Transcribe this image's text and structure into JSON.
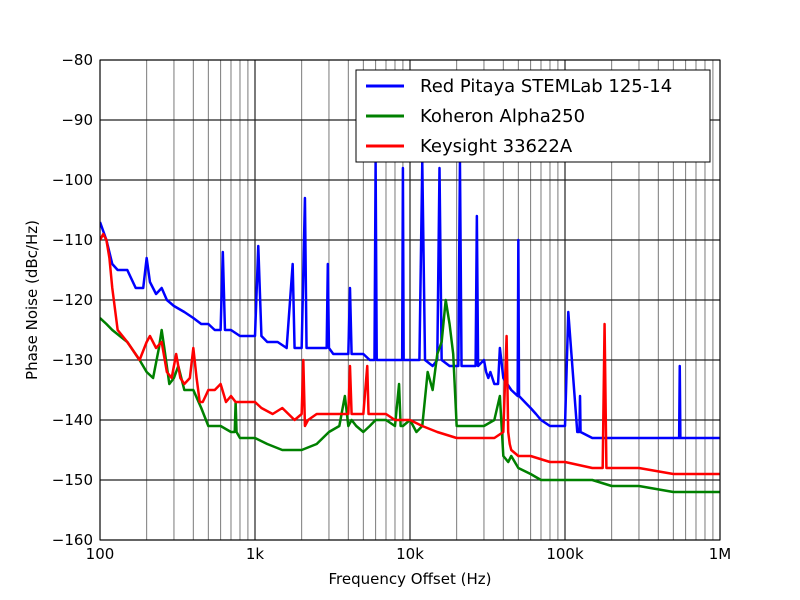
{
  "chart_data": {
    "type": "line",
    "xlabel": "Frequency Offset (Hz)",
    "ylabel": "Phase Noise (dBc/Hz)",
    "xscale": "log",
    "xlim": [
      100,
      1000000
    ],
    "ylim": [
      -160,
      -80
    ],
    "grid": "on (major and minor)",
    "legend_position": "top-right",
    "x_ticks": [
      {
        "value": 100,
        "label": "100"
      },
      {
        "value": 1000,
        "label": "1k"
      },
      {
        "value": 10000,
        "label": "10k"
      },
      {
        "value": 100000,
        "label": "100k"
      },
      {
        "value": 1000000,
        "label": "1M"
      }
    ],
    "y_ticks": [
      {
        "value": -80,
        "label": "−80"
      },
      {
        "value": -90,
        "label": "−90"
      },
      {
        "value": -100,
        "label": "−100"
      },
      {
        "value": -110,
        "label": "−110"
      },
      {
        "value": -120,
        "label": "−120"
      },
      {
        "value": -130,
        "label": "−130"
      },
      {
        "value": -140,
        "label": "−140"
      },
      {
        "value": -150,
        "label": "−150"
      },
      {
        "value": -160,
        "label": "−160"
      }
    ],
    "series": [
      {
        "name": "Red Pitaya STEMLab 125-14",
        "color": "#0000ff",
        "x": [
          100,
          110,
          120,
          130,
          150,
          170,
          190,
          200,
          210,
          230,
          250,
          270,
          300,
          350,
          400,
          450,
          500,
          550,
          600,
          620,
          640,
          700,
          800,
          900,
          1000,
          1050,
          1100,
          1200,
          1400,
          1600,
          1750,
          1800,
          2000,
          2100,
          2150,
          2200,
          2500,
          2900,
          2950,
          3000,
          3200,
          3500,
          3800,
          4000,
          4100,
          4200,
          4500,
          5000,
          5500,
          5900,
          6000,
          6100,
          6500,
          7000,
          8000,
          8900,
          9000,
          9100,
          9500,
          10000,
          11500,
          12000,
          12500,
          14000,
          15000,
          15500,
          16000,
          18000,
          20500,
          21000,
          21500,
          23000,
          26500,
          27000,
          27500,
          30000,
          31000,
          32000,
          33000,
          35000,
          37000,
          38000,
          40000,
          45000,
          49500,
          50000,
          50500,
          55000,
          60000,
          65000,
          70000,
          80000,
          90000,
          100000,
          105000,
          120000,
          124000,
          125000,
          126000,
          150000,
          200000,
          250000,
          300000,
          400000,
          500000,
          545000,
          550000,
          555000,
          600000,
          700000,
          800000,
          1000000
        ],
        "y": [
          -107,
          -110,
          -114,
          -115,
          -115,
          -118,
          -118,
          -113,
          -117,
          -119,
          -118,
          -120,
          -121,
          -122,
          -123,
          -124,
          -124,
          -125,
          -125,
          -112,
          -125,
          -125,
          -126,
          -126,
          -126,
          -111,
          -126,
          -127,
          -127,
          -128,
          -114,
          -128,
          -128,
          -103,
          -128,
          -128,
          -128,
          -128,
          -114,
          -128,
          -129,
          -129,
          -129,
          -129,
          -118,
          -129,
          -129,
          -129,
          -130,
          -130,
          -97,
          -130,
          -130,
          -130,
          -130,
          -130,
          -98,
          -130,
          -130,
          -130,
          -130,
          -97,
          -130,
          -131,
          -130,
          -98,
          -130,
          -131,
          -131,
          -97,
          -131,
          -131,
          -131,
          -106,
          -131,
          -130,
          -132,
          -133,
          -132,
          -134,
          -134,
          -128,
          -133,
          -135,
          -136,
          -110,
          -136,
          -137,
          -138,
          -139,
          -140,
          -141,
          -141,
          -141,
          -122,
          -142,
          -142,
          -136,
          -142,
          -143,
          -143,
          -143,
          -143,
          -143,
          -143,
          -143,
          -131,
          -143,
          -143,
          -143,
          -143,
          -143
        ]
      },
      {
        "name": "Koheron Alpha250",
        "color": "#008000",
        "x": [
          100,
          110,
          120,
          150,
          180,
          200,
          220,
          240,
          250,
          260,
          280,
          300,
          320,
          350,
          400,
          450,
          500,
          600,
          700,
          740,
          750,
          760,
          800,
          900,
          1000,
          1200,
          1500,
          2000,
          2500,
          3000,
          3500,
          3800,
          4000,
          4200,
          4500,
          5000,
          5500,
          6000,
          7000,
          8000,
          8500,
          8700,
          9000,
          10000,
          11000,
          12000,
          13000,
          14000,
          15000,
          16000,
          17000,
          18000,
          19000,
          20000,
          22000,
          25000,
          30000,
          35000,
          38000,
          40000,
          43000,
          45000,
          50000,
          60000,
          70000,
          100000,
          150000,
          200000,
          300000,
          500000,
          700000,
          1000000
        ],
        "y": [
          -123,
          -124,
          -125,
          -127,
          -130,
          -132,
          -133,
          -128,
          -125,
          -128,
          -134,
          -133,
          -131,
          -135,
          -135,
          -138,
          -141,
          -141,
          -142,
          -142,
          -137,
          -142,
          -143,
          -143,
          -143,
          -144,
          -145,
          -145,
          -144,
          -142,
          -141,
          -136,
          -141,
          -140,
          -141,
          -142,
          -141,
          -140,
          -140,
          -141,
          -134,
          -141,
          -141,
          -140,
          -142,
          -141,
          -132,
          -135,
          -129,
          -127,
          -120,
          -124,
          -129,
          -141,
          -141,
          -141,
          -141,
          -140,
          -136,
          -146,
          -147,
          -146,
          -148,
          -149,
          -150,
          -150,
          -150,
          -151,
          -151,
          -152,
          -152,
          -152
        ]
      },
      {
        "name": "Keysight 33622A",
        "color": "#ff0000",
        "x": [
          100,
          105,
          110,
          115,
          120,
          130,
          150,
          180,
          200,
          210,
          230,
          250,
          270,
          290,
          310,
          330,
          350,
          380,
          400,
          420,
          440,
          460,
          480,
          500,
          550,
          600,
          650,
          700,
          750,
          800,
          900,
          1000,
          1100,
          1300,
          1500,
          1800,
          2000,
          2050,
          2100,
          2200,
          2500,
          3000,
          3500,
          4000,
          4100,
          4200,
          4500,
          5000,
          5300,
          5400,
          5600,
          6000,
          7000,
          8000,
          9000,
          10000,
          12000,
          15000,
          20000,
          25000,
          30000,
          35000,
          40000,
          42000,
          43000,
          44000,
          45000,
          50000,
          60000,
          80000,
          100000,
          150000,
          175000,
          180000,
          185000,
          200000,
          300000,
          500000,
          700000,
          1000000
        ],
        "y": [
          -110,
          -109,
          -110,
          -113,
          -118,
          -125,
          -127,
          -130,
          -127,
          -126,
          -128,
          -127,
          -132,
          -133,
          -129,
          -133,
          -134,
          -133,
          -128,
          -133,
          -137,
          -137,
          -136,
          -135,
          -135,
          -134,
          -137,
          -136,
          -137,
          -137,
          -137,
          -137,
          -138,
          -139,
          -138,
          -140,
          -139,
          -130,
          -141,
          -140,
          -139,
          -139,
          -139,
          -139,
          -131,
          -139,
          -139,
          -139,
          -131,
          -139,
          -139,
          -139,
          -139,
          -140,
          -140,
          -140,
          -141,
          -142,
          -143,
          -143,
          -143,
          -143,
          -142,
          -126,
          -142,
          -144,
          -145,
          -146,
          -146,
          -147,
          -147,
          -148,
          -148,
          -124,
          -148,
          -148,
          -148,
          -149,
          -149,
          -149
        ]
      }
    ]
  }
}
